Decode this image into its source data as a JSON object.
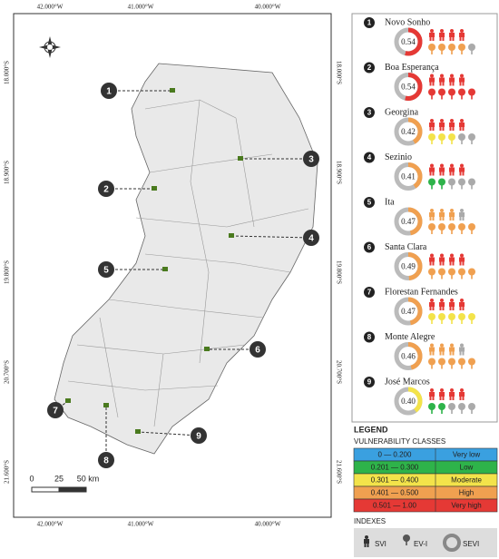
{
  "map": {
    "lon_labels": [
      "42.000°W",
      "41.000°W",
      "40.000°W"
    ],
    "lat_labels": [
      "18.000°S",
      "18.900°S",
      "19.800°S",
      "20.700°S",
      "21.600°S"
    ],
    "scale": [
      "0",
      "25",
      "50 km"
    ]
  },
  "communities": [
    {
      "number": "1",
      "name": "Novo Sonho",
      "sevi": 0.54,
      "sevi_label": "0.54",
      "color": "#e53935",
      "people": [
        "#e53935",
        "#e53935",
        "#e53935",
        "#e53935"
      ],
      "trees": [
        "#f0a050",
        "#f0a050",
        "#f0a050",
        "#f0a050",
        "#aaaaaa"
      ]
    },
    {
      "number": "2",
      "name": "Boa Esperança",
      "sevi": 0.54,
      "sevi_label": "0.54",
      "color": "#e53935",
      "people": [
        "#e53935",
        "#e53935",
        "#e53935",
        "#e53935"
      ],
      "trees": [
        "#e53935",
        "#e53935",
        "#e53935",
        "#e53935",
        "#e53935"
      ]
    },
    {
      "number": "3",
      "name": "Georgina",
      "sevi": 0.42,
      "sevi_label": "0.42",
      "color": "#f0a050",
      "people": [
        "#e53935",
        "#e53935",
        "#e53935",
        "#e53935"
      ],
      "trees": [
        "#f3e34a",
        "#f3e34a",
        "#f3e34a",
        "#aaaaaa",
        "#aaaaaa"
      ]
    },
    {
      "number": "4",
      "name": "Sezinio",
      "sevi": 0.41,
      "sevi_label": "0.41",
      "color": "#f0a050",
      "people": [
        "#e53935",
        "#e53935",
        "#e53935",
        "#e53935"
      ],
      "trees": [
        "#2eb34a",
        "#2eb34a",
        "#aaaaaa",
        "#aaaaaa",
        "#aaaaaa"
      ]
    },
    {
      "number": "5",
      "name": "Ita",
      "sevi": 0.47,
      "sevi_label": "0.47",
      "color": "#f0a050",
      "people": [
        "#f0a050",
        "#f0a050",
        "#f0a050",
        "#aaaaaa"
      ],
      "trees": [
        "#f0a050",
        "#f0a050",
        "#f0a050",
        "#f0a050",
        "#f0a050"
      ]
    },
    {
      "number": "6",
      "name": "Santa Clara",
      "sevi": 0.49,
      "sevi_label": "0.49",
      "color": "#f0a050",
      "people": [
        "#e53935",
        "#e53935",
        "#e53935",
        "#e53935"
      ],
      "trees": [
        "#f0a050",
        "#f0a050",
        "#f0a050",
        "#f0a050",
        "#f0a050"
      ]
    },
    {
      "number": "7",
      "name": "Florestan Fernandes",
      "sevi": 0.47,
      "sevi_label": "0.47",
      "color": "#f0a050",
      "people": [
        "#e53935",
        "#e53935",
        "#e53935",
        "#e53935"
      ],
      "trees": [
        "#f3e34a",
        "#f3e34a",
        "#f3e34a",
        "#f3e34a",
        "#f3e34a"
      ]
    },
    {
      "number": "8",
      "name": "Monte Alegre",
      "sevi": 0.46,
      "sevi_label": "0.46",
      "color": "#f0a050",
      "people": [
        "#f0a050",
        "#f0a050",
        "#f0a050",
        "#aaaaaa"
      ],
      "trees": [
        "#f0a050",
        "#f0a050",
        "#f0a050",
        "#f0a050",
        "#f0a050"
      ]
    },
    {
      "number": "9",
      "name": "José Marcos",
      "sevi": 0.4,
      "sevi_label": "0.40",
      "color": "#f3e34a",
      "people": [
        "#e53935",
        "#e53935",
        "#e53935",
        "#e53935"
      ],
      "trees": [
        "#2eb34a",
        "#2eb34a",
        "#aaaaaa",
        "#aaaaaa",
        "#aaaaaa"
      ]
    }
  ],
  "legend": {
    "title": "LEGEND",
    "classes_title": "VULNERABILITY CLASSES",
    "classes": [
      {
        "range": "0 — 0.200",
        "label": "Very low",
        "color": "#3aa0e0"
      },
      {
        "range": "0.201 — 0.300",
        "label": "Low",
        "color": "#2eb34a"
      },
      {
        "range": "0.301 — 0.400",
        "label": "Moderate",
        "color": "#f3e34a"
      },
      {
        "range": "0.401 — 0.500",
        "label": "High",
        "color": "#f0a050"
      },
      {
        "range": "0.501 — 1.00",
        "label": "Very high",
        "color": "#e53935"
      }
    ],
    "indexes_title": "INDEXES",
    "indexes": [
      "SVI",
      "EV-I",
      "SEVI"
    ]
  }
}
